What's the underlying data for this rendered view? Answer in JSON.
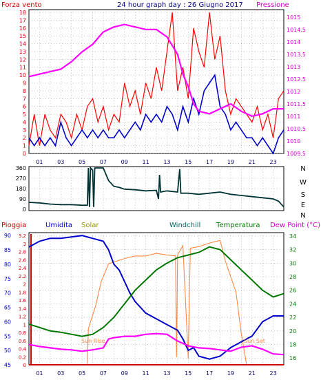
{
  "header": {
    "left_label": "Forza vento",
    "title": "24 hour graph day : 26 Giugno 2017",
    "right_label": "Pressione"
  },
  "legend_bottom": {
    "pioggia": "Pioggia",
    "umidita": "Umidita",
    "solar": "Solar",
    "windchill": "Windchill",
    "temperatura": "Temperatura",
    "dewpoint": "Dew Point (°C)"
  },
  "annotations": {
    "sunrise": "Sun Rise",
    "sunset": "Sun Set"
  },
  "colors": {
    "wind": "#ff0000",
    "wind_avg": "#0000cc",
    "pressure": "#ff00ff",
    "direction": "#003333",
    "humidity": "#0000cc",
    "rain": "#cc0000",
    "solar": "#ff8844",
    "windchill": "#006666",
    "temperature": "#007700",
    "dewpoint": "#ff00ff",
    "axis_left_top": "#cc0000",
    "axis_right_top": "#cc00cc",
    "axis_left_bottom": "#0000cc",
    "axis_rain": "#cc0000",
    "axis_right_bottom": "#007700"
  },
  "x_ticks": [
    "01",
    "03",
    "05",
    "07",
    "09",
    "11",
    "13",
    "15",
    "17",
    "19",
    "21",
    "23"
  ],
  "chart_data": [
    {
      "type": "line",
      "name": "wind",
      "x_unit": "hour",
      "xlim": [
        0,
        24
      ],
      "left_ticks": [
        "0",
        "1",
        "2",
        "3",
        "4",
        "5",
        "6",
        "7",
        "8",
        "9",
        "10",
        "11",
        "12",
        "13",
        "14",
        "15",
        "16",
        "17",
        "18"
      ],
      "left_range": [
        0,
        18
      ],
      "right_ticks": [
        "1009.5",
        "1010",
        "1010.5",
        "1011",
        "1011.5",
        "1012",
        "1012.5",
        "1013",
        "1013.5",
        "1014",
        "1014.5",
        "1015"
      ],
      "right_range": [
        1009.5,
        1015.3
      ],
      "wind_gust": [
        [
          0,
          1
        ],
        [
          0.5,
          5
        ],
        [
          1,
          1
        ],
        [
          1.5,
          5
        ],
        [
          2,
          3
        ],
        [
          2.5,
          2
        ],
        [
          3,
          5
        ],
        [
          3.5,
          4
        ],
        [
          4,
          2
        ],
        [
          4.5,
          5
        ],
        [
          5,
          3
        ],
        [
          5.5,
          6
        ],
        [
          6,
          7
        ],
        [
          6.5,
          4
        ],
        [
          7,
          6
        ],
        [
          7.5,
          3
        ],
        [
          8,
          5
        ],
        [
          8.5,
          4
        ],
        [
          9,
          9
        ],
        [
          9.5,
          6
        ],
        [
          10,
          8
        ],
        [
          10.5,
          5
        ],
        [
          11,
          9
        ],
        [
          11.5,
          7
        ],
        [
          12,
          11
        ],
        [
          12.5,
          8
        ],
        [
          13,
          13
        ],
        [
          13.5,
          18
        ],
        [
          14,
          8
        ],
        [
          14.5,
          11
        ],
        [
          15,
          7
        ],
        [
          15.5,
          16
        ],
        [
          16,
          13
        ],
        [
          16.5,
          11
        ],
        [
          17,
          18
        ],
        [
          17.5,
          12
        ],
        [
          18,
          15
        ],
        [
          18.5,
          8
        ],
        [
          19,
          5
        ],
        [
          19.5,
          7
        ],
        [
          20,
          6
        ],
        [
          20.5,
          5
        ],
        [
          21,
          4
        ],
        [
          21.5,
          6
        ],
        [
          22,
          3
        ],
        [
          22.5,
          5
        ],
        [
          23,
          2
        ],
        [
          23.5,
          7
        ],
        [
          24,
          8
        ]
      ],
      "wind_avg": [
        [
          0,
          2
        ],
        [
          0.5,
          1
        ],
        [
          1,
          2
        ],
        [
          1.5,
          1
        ],
        [
          2,
          2
        ],
        [
          2.5,
          1
        ],
        [
          3,
          4
        ],
        [
          3.5,
          2
        ],
        [
          4,
          1
        ],
        [
          4.5,
          2
        ],
        [
          5,
          3
        ],
        [
          5.5,
          2
        ],
        [
          6,
          3
        ],
        [
          6.5,
          2
        ],
        [
          7,
          3
        ],
        [
          7.5,
          2
        ],
        [
          8,
          2
        ],
        [
          8.5,
          3
        ],
        [
          9,
          2
        ],
        [
          9.5,
          3
        ],
        [
          10,
          4
        ],
        [
          10.5,
          3
        ],
        [
          11,
          5
        ],
        [
          11.5,
          4
        ],
        [
          12,
          5
        ],
        [
          12.5,
          4
        ],
        [
          13,
          6
        ],
        [
          13.5,
          5
        ],
        [
          14,
          3
        ],
        [
          14.5,
          6
        ],
        [
          15,
          4
        ],
        [
          15.5,
          7
        ],
        [
          16,
          5
        ],
        [
          16.5,
          8
        ],
        [
          17,
          9
        ],
        [
          17.5,
          10
        ],
        [
          18,
          6
        ],
        [
          18.5,
          5
        ],
        [
          19,
          3
        ],
        [
          19.5,
          4
        ],
        [
          20,
          3
        ],
        [
          20.5,
          2
        ],
        [
          21,
          2
        ],
        [
          21.5,
          1
        ],
        [
          22,
          2
        ],
        [
          22.5,
          1
        ],
        [
          23,
          0
        ],
        [
          23.5,
          2
        ],
        [
          24,
          3
        ]
      ],
      "pressure": [
        [
          0,
          1012.6
        ],
        [
          1,
          1012.7
        ],
        [
          2,
          1012.8
        ],
        [
          3,
          1012.9
        ],
        [
          4,
          1013.2
        ],
        [
          5,
          1013.6
        ],
        [
          6,
          1013.9
        ],
        [
          7,
          1014.4
        ],
        [
          8,
          1014.6
        ],
        [
          9,
          1014.7
        ],
        [
          10,
          1014.6
        ],
        [
          11,
          1014.5
        ],
        [
          12,
          1014.5
        ],
        [
          13,
          1014.2
        ],
        [
          14,
          1013.5
        ],
        [
          14.5,
          1012.7
        ],
        [
          15,
          1012.2
        ],
        [
          15.5,
          1011.5
        ],
        [
          16,
          1011.2
        ],
        [
          17,
          1011.1
        ],
        [
          18,
          1011.3
        ],
        [
          19,
          1011.5
        ],
        [
          20,
          1011.2
        ],
        [
          21,
          1011.0
        ],
        [
          22,
          1011.1
        ],
        [
          23,
          1011.3
        ],
        [
          24,
          1011.3
        ]
      ]
    },
    {
      "type": "line",
      "name": "direction",
      "left_ticks": [
        "0",
        "90",
        "180",
        "270",
        "360"
      ],
      "right_ticks": [
        "N",
        "W",
        "S",
        "E",
        "N"
      ],
      "ylim": [
        0,
        360
      ],
      "values": [
        [
          0,
          60
        ],
        [
          1,
          55
        ],
        [
          2,
          45
        ],
        [
          3,
          40
        ],
        [
          4,
          40
        ],
        [
          5,
          35
        ],
        [
          5.5,
          35
        ],
        [
          5.6,
          360
        ],
        [
          5.7,
          20
        ],
        [
          5.8,
          360
        ],
        [
          6,
          340
        ],
        [
          6.1,
          20
        ],
        [
          6.2,
          360
        ],
        [
          7,
          360
        ],
        [
          7.5,
          250
        ],
        [
          8,
          200
        ],
        [
          8.5,
          190
        ],
        [
          9,
          175
        ],
        [
          10,
          170
        ],
        [
          11,
          160
        ],
        [
          12,
          165
        ],
        [
          12.2,
          90
        ],
        [
          12.3,
          300
        ],
        [
          12.4,
          150
        ],
        [
          13,
          160
        ],
        [
          14,
          150
        ],
        [
          14.2,
          350
        ],
        [
          14.3,
          140
        ],
        [
          15,
          140
        ],
        [
          16,
          130
        ],
        [
          17,
          140
        ],
        [
          18,
          150
        ],
        [
          19,
          130
        ],
        [
          20,
          120
        ],
        [
          21,
          110
        ],
        [
          22,
          100
        ],
        [
          23,
          90
        ],
        [
          23.5,
          70
        ],
        [
          24,
          20
        ]
      ]
    },
    {
      "type": "line",
      "name": "temperature_humidity",
      "left_ticks": [
        "45",
        "50",
        "55",
        "60",
        "65",
        "70",
        "75",
        "80",
        "85",
        "90"
      ],
      "left_range": [
        45,
        91
      ],
      "rain_ticks": [
        "0",
        "0.2",
        "0.4",
        "0.6",
        "0.8",
        "1",
        "1.2",
        "1.4",
        "1.6",
        "1.8",
        "2",
        "2.2",
        "2.4",
        "2.6",
        "2.8",
        "3",
        "3.2"
      ],
      "rain_range": [
        0,
        3.2
      ],
      "right_ticks": [
        "16",
        "18",
        "20",
        "22",
        "24",
        "26",
        "28",
        "30",
        "32",
        "34"
      ],
      "right_range": [
        15,
        34.5
      ],
      "humidity": [
        [
          0,
          86
        ],
        [
          1,
          88
        ],
        [
          2,
          89
        ],
        [
          3,
          89
        ],
        [
          4,
          89.5
        ],
        [
          5,
          90
        ],
        [
          6,
          89
        ],
        [
          7,
          88
        ],
        [
          7.5,
          85
        ],
        [
          8,
          80
        ],
        [
          8.5,
          78
        ],
        [
          9,
          74
        ],
        [
          9.5,
          70
        ],
        [
          10,
          67
        ],
        [
          11,
          63
        ],
        [
          12,
          61
        ],
        [
          13,
          59
        ],
        [
          14,
          57
        ],
        [
          14.5,
          54
        ],
        [
          15,
          50
        ],
        [
          15.5,
          51
        ],
        [
          16,
          48
        ],
        [
          17,
          47
        ],
        [
          18,
          48
        ],
        [
          19,
          51
        ],
        [
          20,
          53
        ],
        [
          21,
          55
        ],
        [
          22,
          60
        ],
        [
          23,
          62
        ],
        [
          24,
          62
        ]
      ],
      "temperature": [
        [
          0,
          21
        ],
        [
          1,
          20.5
        ],
        [
          2,
          20
        ],
        [
          3,
          19.8
        ],
        [
          4,
          19.5
        ],
        [
          5,
          19.2
        ],
        [
          6,
          19.5
        ],
        [
          7,
          20.5
        ],
        [
          8,
          22
        ],
        [
          9,
          24
        ],
        [
          10,
          26
        ],
        [
          11,
          27.5
        ],
        [
          12,
          29
        ],
        [
          13,
          30
        ],
        [
          14,
          30.8
        ],
        [
          15,
          31.2
        ],
        [
          16,
          31.6
        ],
        [
          17,
          32.4
        ],
        [
          18,
          32
        ],
        [
          19,
          30.5
        ],
        [
          20,
          29
        ],
        [
          21,
          27.5
        ],
        [
          22,
          26
        ],
        [
          23,
          25
        ],
        [
          24,
          25.5
        ]
      ],
      "dewpoint": [
        [
          0,
          18
        ],
        [
          1,
          17.7
        ],
        [
          2,
          17.5
        ],
        [
          3,
          17.3
        ],
        [
          4,
          17.2
        ],
        [
          5,
          17
        ],
        [
          6,
          17.2
        ],
        [
          7,
          17.5
        ],
        [
          7.5,
          18.8
        ],
        [
          8,
          19
        ],
        [
          9,
          19.2
        ],
        [
          10,
          19.2
        ],
        [
          11,
          19.5
        ],
        [
          12,
          19.6
        ],
        [
          13,
          19.5
        ],
        [
          14,
          18.5
        ],
        [
          15,
          17.8
        ],
        [
          16,
          17.5
        ],
        [
          17,
          17.4
        ],
        [
          18,
          17.2
        ],
        [
          19,
          17
        ],
        [
          20,
          17.6
        ],
        [
          21,
          17.8
        ],
        [
          22,
          17.3
        ],
        [
          23,
          16.6
        ],
        [
          24,
          16.5
        ]
      ],
      "solar": [
        [
          0,
          0
        ],
        [
          5.5,
          0
        ],
        [
          5.6,
          70
        ],
        [
          6.3,
          115
        ],
        [
          6.8,
          160
        ],
        [
          7.5,
          195
        ],
        [
          9,
          205
        ],
        [
          10,
          210
        ],
        [
          11,
          210
        ],
        [
          12,
          215
        ],
        [
          13,
          212
        ],
        [
          13.8,
          210
        ],
        [
          13.9,
          15
        ],
        [
          14,
          212
        ],
        [
          14.5,
          230
        ],
        [
          15,
          12
        ],
        [
          15.2,
          225
        ],
        [
          16,
          228
        ],
        [
          17,
          235
        ],
        [
          18,
          240
        ],
        [
          18.5,
          200
        ],
        [
          19,
          170
        ],
        [
          19.5,
          140
        ],
        [
          20,
          60
        ],
        [
          20.5,
          0
        ],
        [
          24,
          0
        ]
      ],
      "solar_range": [
        0,
        255
      ],
      "rain": [
        [
          0,
          0
        ],
        [
          24,
          0
        ]
      ]
    }
  ]
}
